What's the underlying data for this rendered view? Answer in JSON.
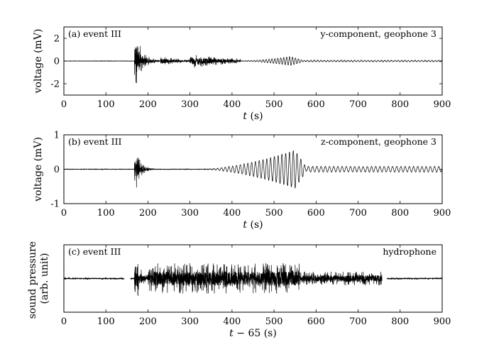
{
  "chart_data": [
    {
      "type": "line",
      "panel_label": "(a) event III",
      "annotation": "y-component, geophone 3",
      "xlabel": "t (s)",
      "xlabel_var": "t",
      "xlabel_unit": " (s)",
      "ylabel": "voltage (mV)",
      "xlim": [
        0,
        900
      ],
      "ylim": [
        -3,
        3
      ],
      "xticks": [
        0,
        100,
        200,
        300,
        400,
        500,
        600,
        700,
        800,
        900
      ],
      "yticks": [
        -2,
        0,
        2
      ],
      "grid": false,
      "series": [
        {
          "color": "#000000",
          "x_range": [
            0,
            900
          ],
          "noise_floor": 0.03,
          "bursts": [
            {
              "start": 168,
              "end": 230,
              "peak": 3.0,
              "decay": 0.06
            },
            {
              "start": 230,
              "end": 300,
              "peak": 0.45,
              "decay": 0.02
            },
            {
              "start": 300,
              "end": 420,
              "peak": 0.65,
              "decay": 0.01
            }
          ],
          "wavetrain": {
            "start": 420,
            "end": 575,
            "peak": 0.4,
            "center": 540,
            "period": 7
          },
          "tail": {
            "start": 575,
            "end": 900,
            "amp": 0.06,
            "period": 8
          }
        }
      ]
    },
    {
      "type": "line",
      "panel_label": "(b) event III",
      "annotation": "z-component, geophone 3",
      "xlabel": "t (s)",
      "xlabel_var": "t",
      "xlabel_unit": " (s)",
      "ylabel": "voltage (mV)",
      "xlim": [
        0,
        900
      ],
      "ylim": [
        -1,
        1
      ],
      "xticks": [
        0,
        100,
        200,
        300,
        400,
        500,
        600,
        700,
        800,
        900
      ],
      "yticks": [
        -1,
        0,
        1
      ],
      "grid": false,
      "series": [
        {
          "color": "#000000",
          "x_range": [
            0,
            900
          ],
          "noise_floor": 0.012,
          "bursts": [
            {
              "start": 168,
              "end": 215,
              "peak": 0.8,
              "decay": 0.08
            }
          ],
          "wavetrain": {
            "start": 330,
            "end": 580,
            "peak": 0.55,
            "center": 550,
            "period": 9
          },
          "tail": {
            "start": 580,
            "end": 900,
            "amp": 0.08,
            "period": 10
          }
        }
      ]
    },
    {
      "type": "line",
      "panel_label": "(c) event III",
      "annotation": "hydrophone",
      "xlabel": "t − 65 (s)",
      "xlabel_var": "t",
      "xlabel_unit": " − 65 (s)",
      "ylabel": "sound pressure (arb. unit)",
      "ylabel_lines": [
        "sound pressure",
        "(arb. unit)"
      ],
      "xlim": [
        0,
        900
      ],
      "ylim": [
        -1,
        1
      ],
      "xticks": [
        0,
        100,
        200,
        300,
        400,
        500,
        600,
        700,
        800,
        900
      ],
      "yticks": [],
      "grid": false,
      "series": [
        {
          "color": "#000000",
          "x_range": [
            0,
            900
          ],
          "noise_floor": 0.03,
          "gaps": [
            [
              143,
              158
            ],
            [
              757,
              768
            ]
          ],
          "bursts": [
            {
              "start": 168,
              "end": 200,
              "peak": 1.0,
              "decay": 0.08
            },
            {
              "start": 200,
              "end": 560,
              "peak": 0.45,
              "decay": 0.0
            },
            {
              "start": 560,
              "end": 760,
              "peak": 0.2,
              "decay": 0.0
            }
          ]
        }
      ]
    }
  ]
}
